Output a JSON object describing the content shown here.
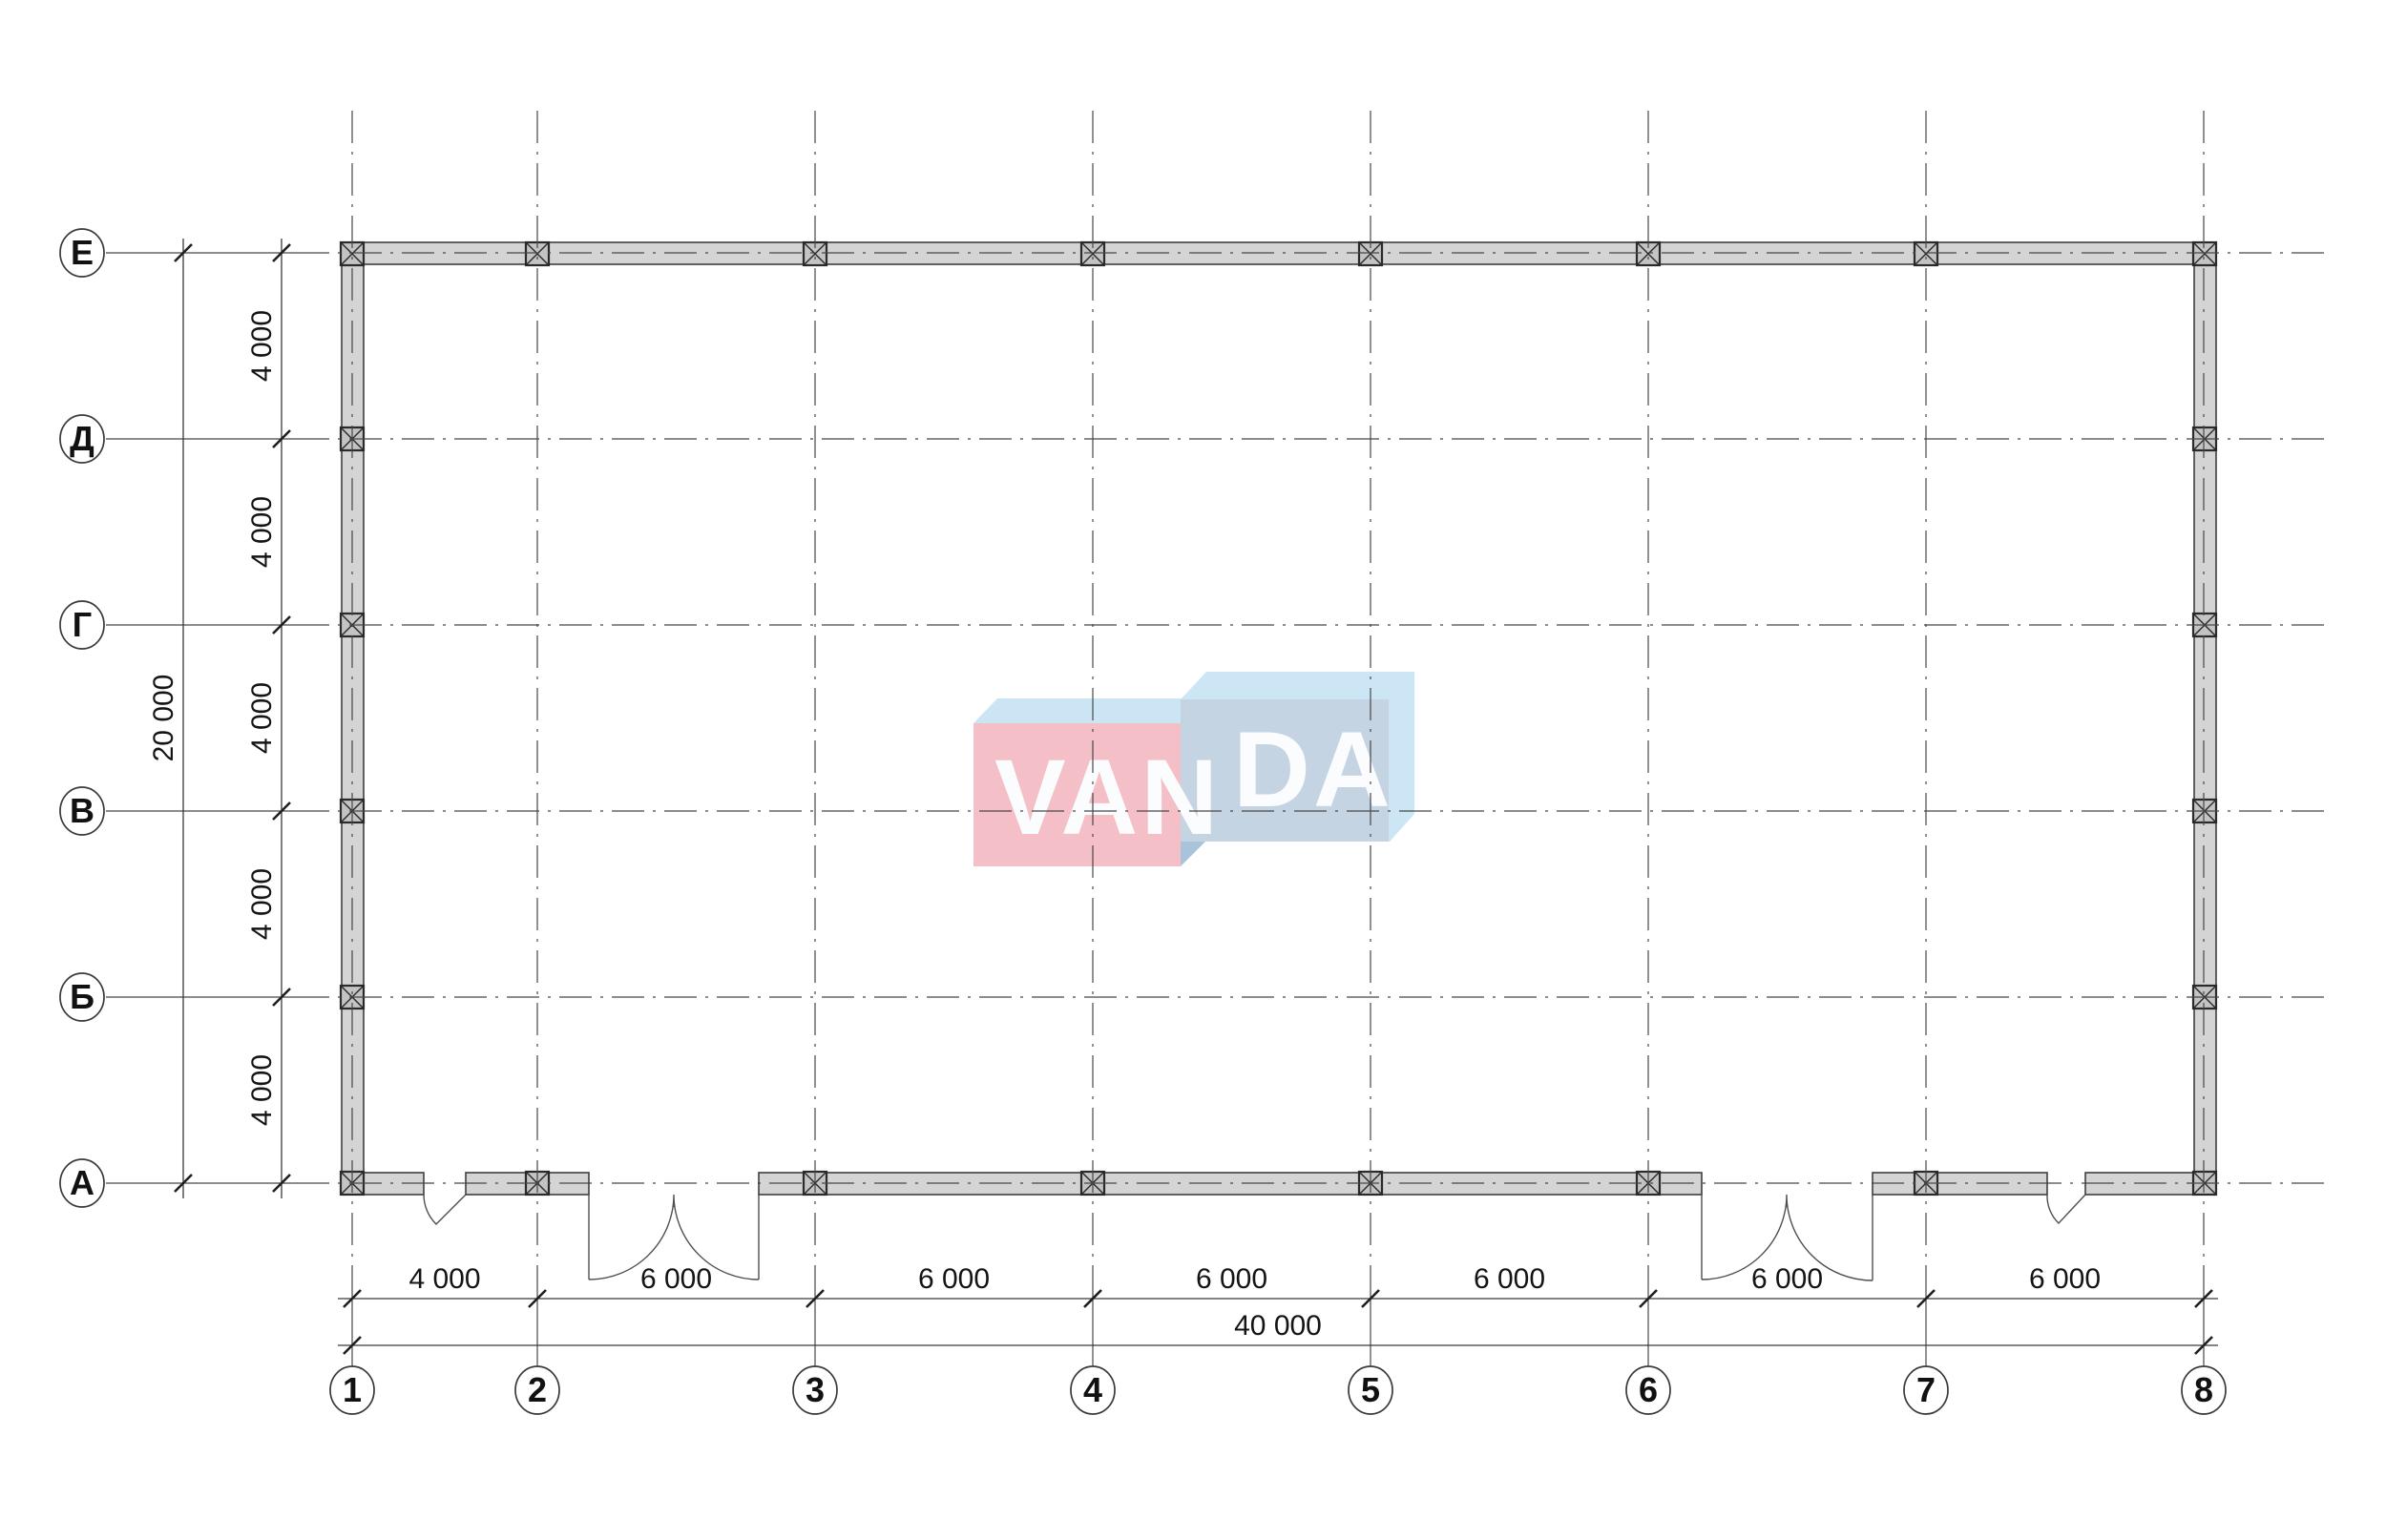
{
  "drawing": {
    "kind": "architectural-floor-plan",
    "watermark": "VANDA"
  },
  "grid": {
    "column_labels": [
      "1",
      "2",
      "3",
      "4",
      "5",
      "6",
      "7",
      "8"
    ],
    "row_labels": [
      "Е",
      "Д",
      "Г",
      "В",
      "Б",
      "А"
    ]
  },
  "dimensions": {
    "bottom_bays": [
      "4 000",
      "6 000",
      "6 000",
      "6 000",
      "6 000",
      "6 000",
      "6 000"
    ],
    "bottom_total": "40 000",
    "left_bays": [
      "4 000",
      "4 000",
      "4 000",
      "4 000",
      "4 000"
    ],
    "left_total": "20 000"
  },
  "logo": {
    "full": "VANDA",
    "van": "VAN",
    "da": "DA",
    "colors": {
      "pink_front": "#f4bfc6",
      "pink_top": "#cbe5f4",
      "blue_front": "#c5d4e2",
      "blue_back": "#cde6f5",
      "fold": "#a9c3da",
      "letters": "#fbfcfd"
    }
  },
  "colors": {
    "background": "#ffffff",
    "wall_fill": "#d4d4d4",
    "wall_stroke": "#3f3f3f",
    "column_fill": "#c3c3c3",
    "column_stroke": "#2a2a2a",
    "grid_line": "#474747",
    "dim_line": "#3a3a3a",
    "tick": "#1f1f1f",
    "text": "#141414",
    "bubble_stroke": "#3a3a3a",
    "bubble_fill": "#ffffff",
    "door_stroke": "#4f4f4f"
  }
}
